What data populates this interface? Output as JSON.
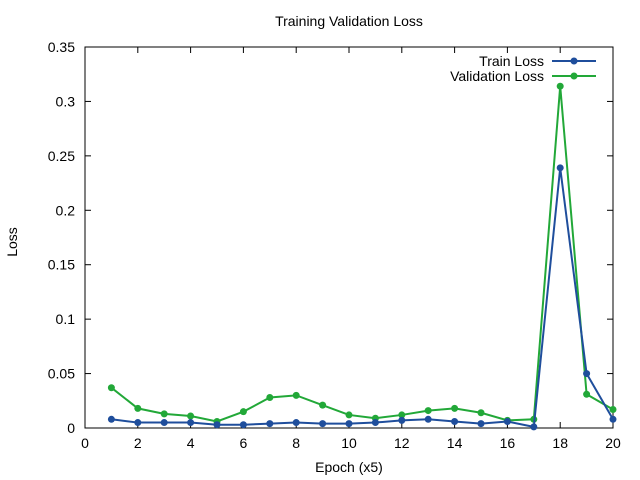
{
  "chart_data": {
    "type": "line",
    "title": "Training  Validation Loss",
    "xlabel": "Epoch (x5)",
    "ylabel": "Loss",
    "xlim": [
      0,
      20
    ],
    "ylim": [
      0,
      0.35
    ],
    "xticks": [
      0,
      2,
      4,
      6,
      8,
      10,
      12,
      14,
      16,
      18,
      20
    ],
    "xtick_labels": [
      "0",
      "2",
      "4",
      "6",
      "8",
      "10",
      "12",
      "14",
      "16",
      "18",
      "20"
    ],
    "yticks": [
      0,
      0.05,
      0.1,
      0.15,
      0.2,
      0.25,
      0.3,
      0.35
    ],
    "ytick_labels": [
      "0",
      "0.05",
      "0.1",
      "0.15",
      "0.2",
      "0.25",
      "0.3",
      "0.35"
    ],
    "grid": false,
    "legend_position": "top-right",
    "x": [
      1,
      2,
      3,
      4,
      5,
      6,
      7,
      8,
      9,
      10,
      11,
      12,
      13,
      14,
      15,
      16,
      17,
      18,
      19,
      20
    ],
    "series": [
      {
        "name": "Train Loss",
        "color": "#1f4e9c",
        "values": [
          0.008,
          0.005,
          0.005,
          0.005,
          0.003,
          0.003,
          0.004,
          0.005,
          0.004,
          0.004,
          0.005,
          0.007,
          0.008,
          0.006,
          0.004,
          0.006,
          0.001,
          0.239,
          0.05,
          0.008
        ]
      },
      {
        "name": "Validation Loss",
        "color": "#22a838",
        "values": [
          0.037,
          0.018,
          0.013,
          0.011,
          0.006,
          0.015,
          0.028,
          0.03,
          0.021,
          0.012,
          0.009,
          0.012,
          0.016,
          0.018,
          0.014,
          0.007,
          0.008,
          0.314,
          0.031,
          0.017
        ]
      }
    ]
  }
}
